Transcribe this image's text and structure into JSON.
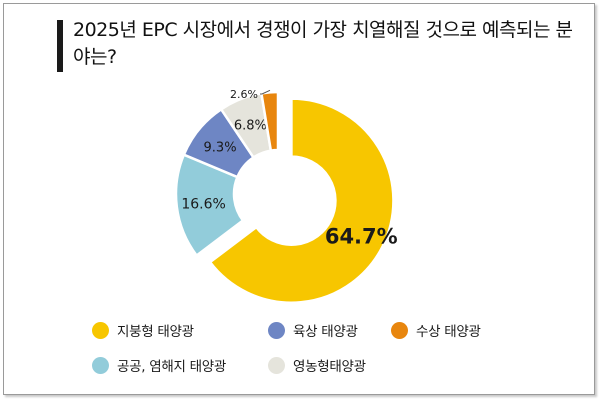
{
  "title": "2025년 EPC 시장에서 경쟁이 가장 치열해질 것으로 예측되는 분야는?",
  "chart_data": {
    "type": "pie",
    "title": "2025년 EPC 시장에서 경쟁이 가장 치열해질 것으로 예측되는 분야는?",
    "categories": [
      "지붕형 태양광",
      "공공, 염해지 태양광",
      "육상 태양광",
      "영농형태양광",
      "수상 태양광"
    ],
    "values": [
      64.7,
      16.6,
      9.3,
      6.8,
      2.6
    ],
    "labels": [
      "64.7%",
      "16.6%",
      "9.3%",
      "6.8%",
      "2.6%"
    ],
    "colors": [
      "#F7C600",
      "#92CCDA",
      "#6E86C4",
      "#E5E4DC",
      "#E8860E"
    ],
    "legend_position": "bottom",
    "style": "donut with first slice exploded"
  },
  "legend": [
    {
      "label": "지붕형 태양광",
      "color": "#F7C600"
    },
    {
      "label": "육상 태양광",
      "color": "#6E86C4"
    },
    {
      "label": "수상 태양광",
      "color": "#E8860E"
    },
    {
      "label": "공공, 염해지 태양광",
      "color": "#92CCDA"
    },
    {
      "label": "영농형태양광",
      "color": "#E5E4DC"
    }
  ]
}
